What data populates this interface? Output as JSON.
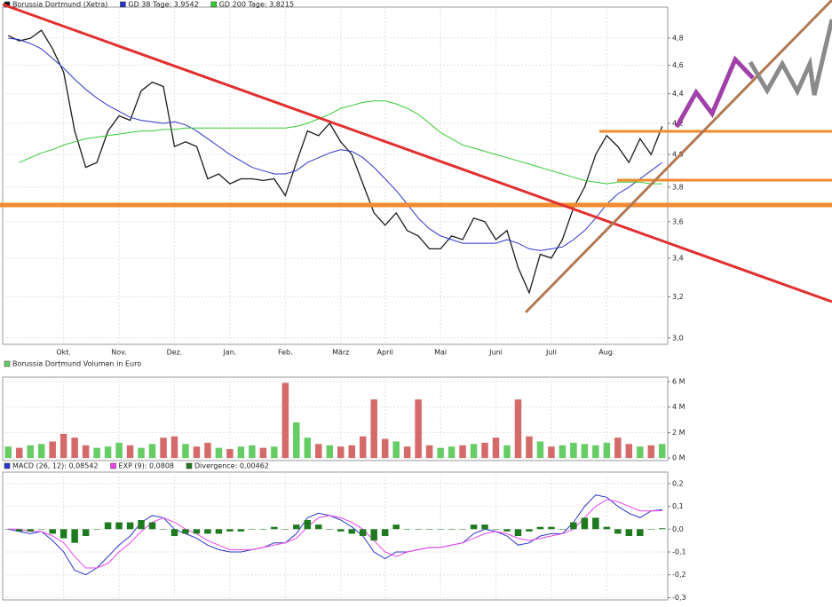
{
  "chart_data": [
    {
      "type": "line",
      "log": true,
      "grid": true,
      "categories": [
        null,
        null,
        null,
        null,
        null,
        "Okt.",
        null,
        null,
        null,
        null,
        "Nov.",
        null,
        null,
        null,
        null,
        "Dez.",
        null,
        null,
        null,
        null,
        "Jan.",
        null,
        null,
        null,
        null,
        "Feb.",
        null,
        null,
        null,
        null,
        "März",
        null,
        null,
        null,
        "April",
        null,
        null,
        null,
        null,
        "Mai",
        null,
        null,
        null,
        null,
        "Juni",
        null,
        null,
        null,
        null,
        "Juli",
        null,
        null,
        null,
        null,
        "Aug.",
        null,
        null,
        null,
        null,
        null
      ],
      "ylim": [
        2.97,
        5.04
      ],
      "yticks": [
        {
          "value": 3.0,
          "label": "3,0"
        },
        {
          "value": 3.2,
          "label": "3,2"
        },
        {
          "value": 3.4,
          "label": "3,4"
        },
        {
          "value": 3.6,
          "label": "3,6"
        },
        {
          "value": 3.8,
          "label": "3,8"
        },
        {
          "value": 4.0,
          "label": "4,0"
        },
        {
          "value": 4.2,
          "label": "4,2"
        },
        {
          "value": 4.4,
          "label": "4,4"
        },
        {
          "value": 4.6,
          "label": "4,6"
        },
        {
          "value": 4.8,
          "label": "4,8"
        }
      ],
      "series": [
        {
          "name": "Borussia Dortmund (Xetra)",
          "color": "#1a1a1a",
          "values": [
            4.82,
            4.78,
            4.8,
            4.86,
            4.72,
            4.55,
            4.15,
            3.92,
            3.95,
            4.15,
            4.25,
            4.22,
            4.42,
            4.48,
            4.45,
            4.05,
            4.08,
            4.05,
            3.85,
            3.88,
            3.82,
            3.85,
            3.85,
            3.84,
            3.85,
            3.75,
            3.95,
            4.15,
            4.12,
            4.2,
            4.08,
            4.0,
            3.82,
            3.65,
            3.58,
            3.65,
            3.55,
            3.52,
            3.45,
            3.45,
            3.52,
            3.5,
            3.62,
            3.6,
            3.5,
            3.55,
            3.35,
            3.22,
            3.42,
            3.4,
            3.5,
            3.68,
            3.8,
            4.0,
            4.12,
            4.05,
            3.95,
            4.1,
            4.0,
            4.18
          ]
        },
        {
          "name": "GD 38 Tage: 3,9542",
          "color": "#2b36c8",
          "values": [
            4.8,
            4.79,
            4.76,
            4.72,
            4.65,
            4.58,
            4.5,
            4.43,
            4.37,
            4.32,
            4.28,
            4.24,
            4.22,
            4.21,
            4.2,
            4.21,
            4.19,
            4.15,
            4.1,
            4.05,
            4.0,
            3.96,
            3.92,
            3.9,
            3.88,
            3.88,
            3.9,
            3.95,
            3.98,
            4.01,
            4.03,
            4.02,
            3.98,
            3.92,
            3.85,
            3.78,
            3.7,
            3.62,
            3.56,
            3.52,
            3.5,
            3.48,
            3.48,
            3.48,
            3.48,
            3.5,
            3.48,
            3.45,
            3.44,
            3.45,
            3.46,
            3.5,
            3.55,
            3.62,
            3.7,
            3.76,
            3.8,
            3.85,
            3.9,
            3.95
          ]
        },
        {
          "name": "GD 200 Tage: 3,8215",
          "color": "#33cc33",
          "values": [
            null,
            3.95,
            3.98,
            4.01,
            4.03,
            4.06,
            4.08,
            4.1,
            4.11,
            4.12,
            4.13,
            4.14,
            4.15,
            4.15,
            4.16,
            4.16,
            4.17,
            4.17,
            4.17,
            4.17,
            4.17,
            4.17,
            4.17,
            4.17,
            4.17,
            4.17,
            4.18,
            4.2,
            4.23,
            4.26,
            4.3,
            4.32,
            4.34,
            4.35,
            4.35,
            4.33,
            4.3,
            4.26,
            4.2,
            4.14,
            4.1,
            4.06,
            4.04,
            4.02,
            4.0,
            3.98,
            3.96,
            3.94,
            3.92,
            3.9,
            3.88,
            3.86,
            3.84,
            3.83,
            3.82,
            3.83,
            3.83,
            3.83,
            3.82,
            3.82
          ]
        }
      ]
    },
    {
      "type": "bar",
      "grid": true,
      "down_color": "#d46a6a",
      "ylim": [
        -0.2,
        6.35
      ],
      "yticks": [
        {
          "value": 0,
          "label": "0 M"
        },
        {
          "value": 2,
          "label": "2 M"
        },
        {
          "value": 4,
          "label": "4 M"
        },
        {
          "value": 6,
          "label": "6 M"
        }
      ],
      "series": [
        {
          "name": "Borussia Dortmund Volumen in Euro",
          "color": "#66cc66",
          "values": [
            0.9,
            0.8,
            1.0,
            1.1,
            1.3,
            1.9,
            1.6,
            1.0,
            0.8,
            0.9,
            1.2,
            1.0,
            0.8,
            1.1,
            1.6,
            1.7,
            1.1,
            0.9,
            1.2,
            0.8,
            0.7,
            0.9,
            1.0,
            0.8,
            0.9,
            5.9,
            2.8,
            1.6,
            1.1,
            1.0,
            0.9,
            1.0,
            1.7,
            4.6,
            1.5,
            1.3,
            0.9,
            4.6,
            1.0,
            0.8,
            0.9,
            1.0,
            1.1,
            1.2,
            1.6,
            1.0,
            4.6,
            1.7,
            1.3,
            0.9,
            1.0,
            1.2,
            1.1,
            1.0,
            1.2,
            1.6,
            1.1,
            0.9,
            1.0,
            1.1
          ]
        }
      ]
    },
    {
      "type": "macd",
      "grid": true,
      "ylim": [
        -0.31,
        0.25
      ],
      "yticks": [
        {
          "value": -0.3,
          "label": "-0,3"
        },
        {
          "value": -0.2,
          "label": "-0,2"
        },
        {
          "value": -0.1,
          "label": "-0,1"
        },
        {
          "value": 0,
          "label": "0,0"
        },
        {
          "value": 0.1,
          "label": "0,1"
        },
        {
          "value": 0.2,
          "label": "0,2"
        }
      ],
      "series": [
        {
          "name": "MACD (26, 12): 0,08542",
          "color": "#2b36c8",
          "values": [
            0.0,
            -0.01,
            -0.02,
            -0.01,
            -0.05,
            -0.1,
            -0.18,
            -0.2,
            -0.17,
            -0.12,
            -0.07,
            -0.03,
            0.03,
            0.06,
            0.05,
            0.0,
            -0.02,
            -0.04,
            -0.07,
            -0.09,
            -0.1,
            -0.1,
            -0.09,
            -0.08,
            -0.06,
            -0.06,
            -0.02,
            0.05,
            0.07,
            0.06,
            0.04,
            0.01,
            -0.03,
            -0.1,
            -0.13,
            -0.1,
            -0.1,
            -0.09,
            -0.08,
            -0.08,
            -0.07,
            -0.06,
            -0.02,
            0.0,
            -0.01,
            -0.03,
            -0.07,
            -0.06,
            -0.03,
            -0.02,
            -0.02,
            0.03,
            0.1,
            0.15,
            0.14,
            0.1,
            0.07,
            0.05,
            0.08,
            0.085
          ]
        },
        {
          "name": "EXP (9): 0,0808",
          "color": "#ee44ee",
          "values": [
            0.0,
            0.0,
            -0.01,
            -0.01,
            -0.03,
            -0.06,
            -0.12,
            -0.17,
            -0.17,
            -0.15,
            -0.1,
            -0.06,
            -0.01,
            0.03,
            0.05,
            0.03,
            0.0,
            -0.02,
            -0.05,
            -0.07,
            -0.09,
            -0.09,
            -0.09,
            -0.08,
            -0.07,
            -0.06,
            -0.04,
            0.01,
            0.05,
            0.06,
            0.05,
            0.03,
            0.0,
            -0.05,
            -0.1,
            -0.12,
            -0.1,
            -0.09,
            -0.08,
            -0.08,
            -0.07,
            -0.06,
            -0.04,
            -0.02,
            -0.01,
            -0.02,
            -0.04,
            -0.05,
            -0.04,
            -0.03,
            -0.02,
            0.0,
            0.05,
            0.1,
            0.13,
            0.12,
            0.1,
            0.08,
            0.08,
            0.081
          ]
        },
        {
          "name": "Divergence: 0,00462",
          "color": "#1f7a1f",
          "type": "bar",
          "values": [
            0,
            -0.01,
            -0.01,
            0,
            -0.02,
            -0.04,
            -0.06,
            -0.03,
            0,
            0.03,
            0.03,
            0.03,
            0.04,
            0.03,
            0,
            -0.03,
            -0.02,
            -0.02,
            -0.02,
            -0.02,
            -0.01,
            -0.01,
            0,
            0,
            0.01,
            0,
            0.02,
            0.04,
            0.02,
            0,
            -0.01,
            -0.02,
            -0.03,
            -0.05,
            -0.03,
            0.02,
            0,
            0,
            0,
            0,
            0,
            0,
            0.02,
            0.02,
            0,
            -0.01,
            -0.03,
            -0.01,
            0.01,
            0.01,
            0,
            0.03,
            0.05,
            0.05,
            0.01,
            -0.02,
            -0.03,
            -0.03,
            0,
            0.004
          ]
        }
      ]
    }
  ]
}
